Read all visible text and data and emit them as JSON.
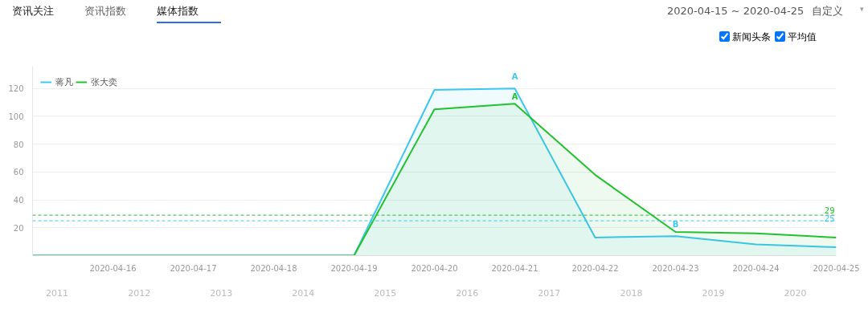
{
  "chart_data": {
    "type": "area",
    "x": [
      "2020-04-15",
      "2020-04-16",
      "2020-04-17",
      "2020-04-18",
      "2020-04-19",
      "2020-04-20",
      "2020-04-21",
      "2020-04-22",
      "2020-04-23",
      "2020-04-24",
      "2020-04-25"
    ],
    "series": [
      {
        "name": "蒋凡",
        "color": "#3cc6f0",
        "values": [
          0,
          0,
          0,
          0,
          0,
          119,
          120,
          13,
          14,
          8,
          6
        ]
      },
      {
        "name": "张大奕",
        "color": "#22c22e",
        "values": [
          0,
          0,
          0,
          0,
          0,
          105,
          109,
          58,
          17,
          16,
          13
        ]
      }
    ],
    "xlim": [
      "2020-04-15",
      "2020-04-25"
    ],
    "xticks": [
      "2020-04-16",
      "2020-04-17",
      "2020-04-18",
      "2020-04-19",
      "2020-04-20",
      "2020-04-21",
      "2020-04-22",
      "2020-04-23",
      "2020-04-24",
      "2020-04-25"
    ],
    "ylim": [
      0,
      136
    ],
    "yticks": [
      20,
      40,
      60,
      80,
      100,
      120
    ],
    "grid": "y",
    "legend": "top left",
    "ref_lines": [
      {
        "axis": "y",
        "value": 29,
        "label": "29",
        "color": "#22c22e",
        "line_style": "dashed"
      },
      {
        "axis": "y",
        "value": 25,
        "label": "25",
        "color": "#3cc6f0",
        "line_style": "dashed"
      }
    ],
    "annotations": [
      "资讯关注",
      "资讯指数",
      "媒体指数",
      "2020-04-15 ~ 2020-04-25",
      "自定义",
      "▾",
      "新闻头条",
      "平均值",
      "2011",
      "2012",
      "2013",
      "2014",
      "2015",
      "2016",
      "2017",
      "2018",
      "2019",
      "2020",
      {
        "text": "A",
        "x": "2020-04-21",
        "y": 120
      },
      {
        "text": "A",
        "x": "2020-04-21",
        "y": 109
      },
      {
        "text": "B",
        "x": "2020-04-23",
        "y": 14
      }
    ]
  }
}
